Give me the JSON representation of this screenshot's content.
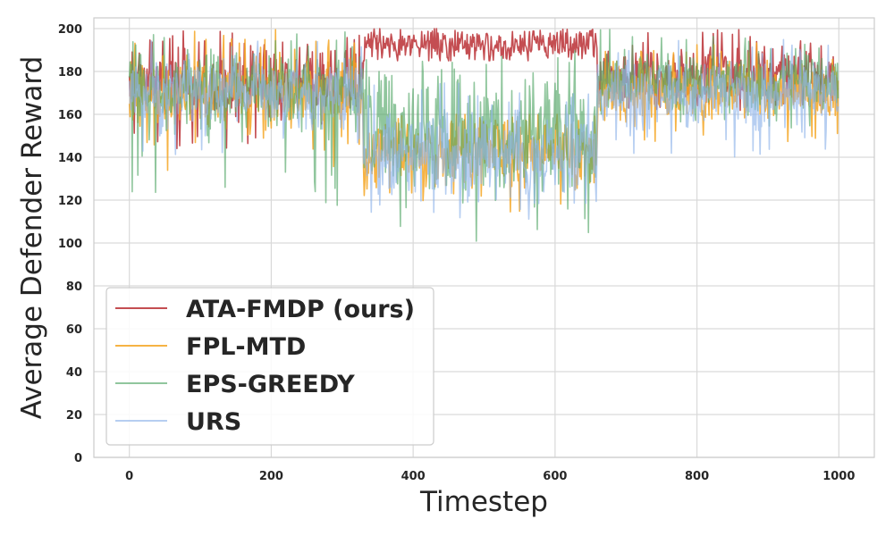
{
  "chart_data": {
    "type": "line",
    "xlabel": "Timestep",
    "ylabel": "Average Defender Reward",
    "xlim": [
      -50,
      1050
    ],
    "ylim": [
      0,
      205
    ],
    "xticks": [
      0,
      200,
      400,
      600,
      800,
      1000
    ],
    "yticks": [
      0,
      20,
      40,
      60,
      80,
      100,
      120,
      140,
      160,
      180,
      200
    ],
    "grid": true,
    "legend_position": "lower-left",
    "n_points": 1000,
    "series": [
      {
        "name": "ATA-FMDP (ours)",
        "color": "#c44e52",
        "opacity": 1.0,
        "segments": [
          {
            "x": [
              0,
              330
            ],
            "mean": 175,
            "spread": 12,
            "min": 140,
            "max": 200
          },
          {
            "x": [
              330,
              660
            ],
            "mean": 192,
            "spread": 6,
            "min": 185,
            "max": 200
          },
          {
            "x": [
              660,
              1000
            ],
            "mean": 178,
            "spread": 10,
            "min": 160,
            "max": 200
          }
        ]
      },
      {
        "name": "FPL-MTD",
        "color": "#f5a623",
        "opacity": 0.85,
        "segments": [
          {
            "x": [
              0,
              330
            ],
            "mean": 170,
            "spread": 13,
            "min": 133,
            "max": 200
          },
          {
            "x": [
              330,
              660
            ],
            "mean": 142,
            "spread": 12,
            "min": 110,
            "max": 160
          },
          {
            "x": [
              660,
              1000
            ],
            "mean": 172,
            "spread": 11,
            "min": 145,
            "max": 195
          }
        ]
      },
      {
        "name": "EPS-GREEDY",
        "color": "#55a868",
        "opacity": 0.65,
        "segments": [
          {
            "x": [
              0,
              330
            ],
            "mean": 170,
            "spread": 14,
            "min": 117,
            "max": 200
          },
          {
            "x": [
              330,
              660
            ],
            "mean": 150,
            "spread": 20,
            "min": 100,
            "max": 190
          },
          {
            "x": [
              660,
              1000
            ],
            "mean": 175,
            "spread": 11,
            "min": 150,
            "max": 200
          }
        ]
      },
      {
        "name": "URS",
        "color": "#8fb4ea",
        "opacity": 0.65,
        "segments": [
          {
            "x": [
              0,
              330
            ],
            "mean": 170,
            "spread": 12,
            "min": 140,
            "max": 195
          },
          {
            "x": [
              330,
              660
            ],
            "mean": 140,
            "spread": 15,
            "min": 110,
            "max": 175
          },
          {
            "x": [
              660,
              1000
            ],
            "mean": 170,
            "spread": 12,
            "min": 139,
            "max": 195
          }
        ]
      }
    ]
  }
}
